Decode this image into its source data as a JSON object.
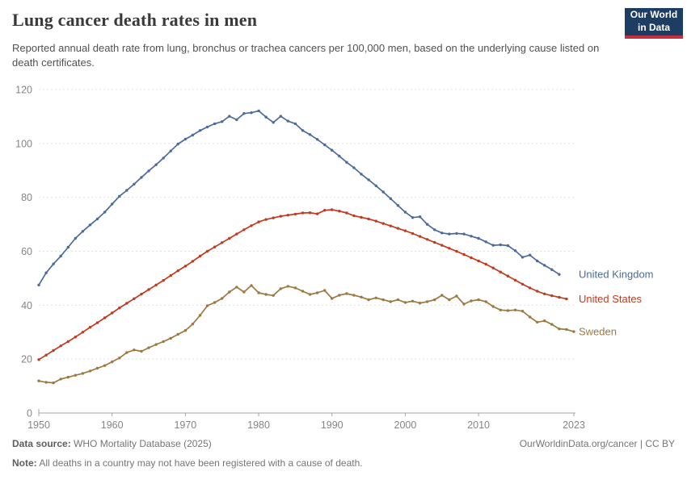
{
  "header": {
    "title": "Lung cancer death rates in men",
    "subtitle": "Reported annual death rate from lung, bronchus or trachea cancers per 100,000 men, based on the underlying cause listed on death certificates.",
    "logo": {
      "line1": "Our World",
      "line2": "in Data",
      "bg_color": "#1d3d63",
      "stripe_color": "#c5303e"
    }
  },
  "footer": {
    "source_label": "Data source:",
    "source_text": " WHO Mortality Database (2025)",
    "note_label": "Note:",
    "note_text": " All deaths in a country may not have been registered with a cause of death.",
    "right_text": "OurWorldinData.org/cancer | CC BY"
  },
  "colors": {
    "grid": "#e0e0e0",
    "axis": "#a3a3a3",
    "tick_text": "#858585"
  },
  "chart_data": {
    "type": "line",
    "title": "Lung cancer death rates in men",
    "xlabel": "",
    "ylabel": "",
    "xlim": [
      1950,
      2023
    ],
    "ylim": [
      0,
      120
    ],
    "xticks": [
      1950,
      1960,
      1970,
      1980,
      1990,
      2000,
      2010,
      2023
    ],
    "yticks": [
      0,
      20,
      40,
      60,
      80,
      100,
      120
    ],
    "grid": true,
    "legend_position": "right-of-line-end",
    "series": [
      {
        "name": "United Kingdom",
        "color": "#4C6A9C",
        "start_year": 1950,
        "end_year": 2021,
        "values": [
          47.5,
          52,
          55.3,
          58.2,
          61.5,
          64.8,
          67.4,
          69.8,
          72,
          74.5,
          77.5,
          80.4,
          82.6,
          84.9,
          87.4,
          89.8,
          92.1,
          94.6,
          97.2,
          99.8,
          101.6,
          103.1,
          104.8,
          106.1,
          107.3,
          108.1,
          110.1,
          108.8,
          111.1,
          111.4,
          112.1,
          109.8,
          107.8,
          110.1,
          108.3,
          107.3,
          104.8,
          103.3,
          101.5,
          99.5,
          97.5,
          95.3,
          93,
          91,
          88.6,
          86.5,
          84.3,
          82,
          79.5,
          77,
          74.5,
          72.5,
          72.8,
          70,
          68,
          66.8,
          66.4,
          66.6,
          66.4,
          65.6,
          64.8,
          63.5,
          62.2,
          62.4,
          62.1,
          60.2,
          57.8,
          58.6,
          56.4,
          54.8,
          53.2,
          51.4
        ]
      },
      {
        "name": "United States",
        "color": "#C03A20",
        "start_year": 1950,
        "end_year": 2022,
        "values": [
          19.8,
          21.5,
          23.2,
          24.9,
          26.5,
          28.2,
          30,
          31.8,
          33.5,
          35.3,
          37.1,
          39,
          40.7,
          42.4,
          44.1,
          45.8,
          47.5,
          49.2,
          51,
          52.8,
          54.5,
          56.3,
          58.2,
          60,
          61.6,
          63.2,
          64.8,
          66.4,
          68,
          69.5,
          70.9,
          71.8,
          72.4,
          73,
          73.4,
          73.8,
          74.2,
          74.3,
          73.9,
          75.2,
          75.4,
          74.9,
          74.2,
          73.2,
          72.6,
          72,
          71.2,
          70.3,
          69.4,
          68.5,
          67.6,
          66.6,
          65.5,
          64.4,
          63.3,
          62.2,
          61.1,
          60,
          58.8,
          57.6,
          56.4,
          55.2,
          53.8,
          52.3,
          50.8,
          49.3,
          47.8,
          46.4,
          45.2,
          44.2,
          43.5,
          42.9,
          42.3
        ]
      },
      {
        "name": "Sweden",
        "color": "#9D7840",
        "start_year": 1950,
        "end_year": 2023,
        "values": [
          11.9,
          11.4,
          11.2,
          12.6,
          13.3,
          14,
          14.7,
          15.6,
          16.6,
          17.6,
          19,
          20.4,
          22.4,
          23.4,
          22.9,
          24.2,
          25.4,
          26.5,
          27.7,
          29.2,
          30.6,
          33,
          36.2,
          39.8,
          41,
          42.5,
          44.9,
          46.7,
          44.9,
          47.3,
          44.6,
          44,
          43.6,
          46.1,
          47,
          46.4,
          45.2,
          44,
          44.6,
          45.5,
          42.5,
          43.7,
          44.3,
          43.7,
          43,
          42,
          42.7,
          42,
          41.3,
          42,
          41,
          41.5,
          40.8,
          41.3,
          42,
          43.7,
          42,
          43.4,
          40.4,
          41.6,
          42,
          41.3,
          39.5,
          38.2,
          38,
          38.2,
          37.8,
          35.6,
          33.7,
          34.2,
          32.9,
          31.2,
          31,
          30.2
        ]
      }
    ]
  }
}
